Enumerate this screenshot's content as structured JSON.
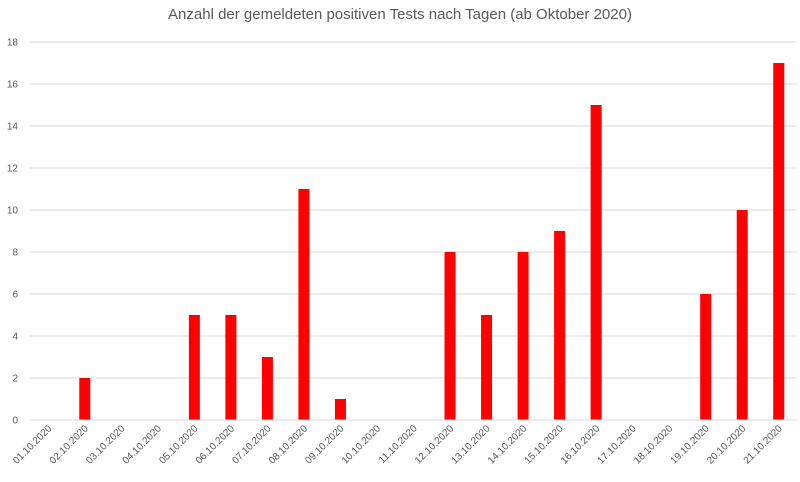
{
  "chart_data": {
    "type": "bar",
    "title": "Anzahl der gemeldeten positiven Tests nach Tagen (ab Oktober 2020)",
    "xlabel": "",
    "ylabel": "",
    "categories": [
      "01.10.2020",
      "02.10.2020",
      "03.10.2020",
      "04.10.2020",
      "05.10.2020",
      "06.10.2020",
      "07.10.2020",
      "08.10.2020",
      "09.10.2020",
      "10.10.2020",
      "11.10.2020",
      "12.10.2020",
      "13.10.2020",
      "14.10.2020",
      "15.10.2020",
      "16.10.2020",
      "17.10.2020",
      "18.10.2020",
      "19.10.2020",
      "20.10.2020",
      "21.10.2020"
    ],
    "values": [
      0,
      2,
      0,
      0,
      5,
      5,
      3,
      11,
      1,
      0,
      0,
      8,
      5,
      8,
      9,
      15,
      0,
      0,
      6,
      10,
      17
    ],
    "ylim": [
      0,
      18
    ],
    "yticks": [
      0,
      2,
      4,
      6,
      8,
      10,
      12,
      14,
      16,
      18
    ],
    "grid": true,
    "legend": "none",
    "bar_color": "#ff0000",
    "grid_color": "#d9d9d9",
    "text_color": "#595959"
  }
}
